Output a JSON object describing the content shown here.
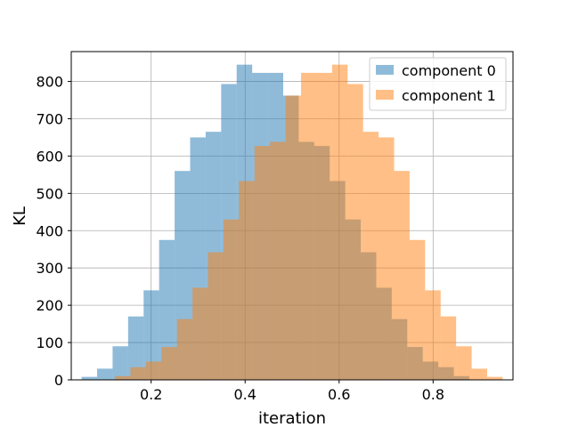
{
  "chart_data": {
    "type": "bar",
    "subtype": "overlapping-histogram",
    "title": "",
    "xlabel": "iteration",
    "ylabel": "KL",
    "xlim": [
      0.03,
      0.97
    ],
    "ylim": [
      0,
      880
    ],
    "xticks": [
      0.2,
      0.4,
      0.6,
      0.8
    ],
    "xtick_labels": [
      "0.2",
      "0.4",
      "0.6",
      "0.8"
    ],
    "yticks": [
      0,
      100,
      200,
      300,
      400,
      500,
      600,
      700,
      800
    ],
    "ytick_labels": [
      "0",
      "100",
      "200",
      "300",
      "400",
      "500",
      "600",
      "700",
      "800"
    ],
    "grid": true,
    "legend_position": "top-right",
    "bar_opacity": 0.5,
    "series": [
      {
        "name": "component 0",
        "color": "#1f77b4",
        "bin_edges": [
          0.052,
          0.085,
          0.118,
          0.151,
          0.184,
          0.217,
          0.25,
          0.283,
          0.316,
          0.349,
          0.382,
          0.415,
          0.448,
          0.481,
          0.514,
          0.547,
          0.58,
          0.613,
          0.646,
          0.679,
          0.712,
          0.745,
          0.778,
          0.811,
          0.844,
          0.877
        ],
        "values": [
          8,
          30,
          90,
          170,
          240,
          375,
          560,
          650,
          665,
          793,
          845,
          823,
          823,
          762,
          638,
          627,
          533,
          430,
          342,
          247,
          163,
          88,
          49,
          34,
          10
        ]
      },
      {
        "name": "component 1",
        "color": "#ff7f0e",
        "bin_edges": [
          0.123,
          0.156,
          0.189,
          0.222,
          0.255,
          0.288,
          0.321,
          0.354,
          0.387,
          0.42,
          0.453,
          0.486,
          0.519,
          0.552,
          0.585,
          0.618,
          0.651,
          0.684,
          0.717,
          0.75,
          0.783,
          0.816,
          0.849,
          0.882,
          0.915,
          0.948
        ],
        "values": [
          10,
          34,
          49,
          88,
          163,
          247,
          342,
          430,
          533,
          627,
          638,
          762,
          823,
          823,
          845,
          793,
          665,
          650,
          560,
          375,
          240,
          170,
          90,
          30,
          8
        ]
      }
    ]
  }
}
